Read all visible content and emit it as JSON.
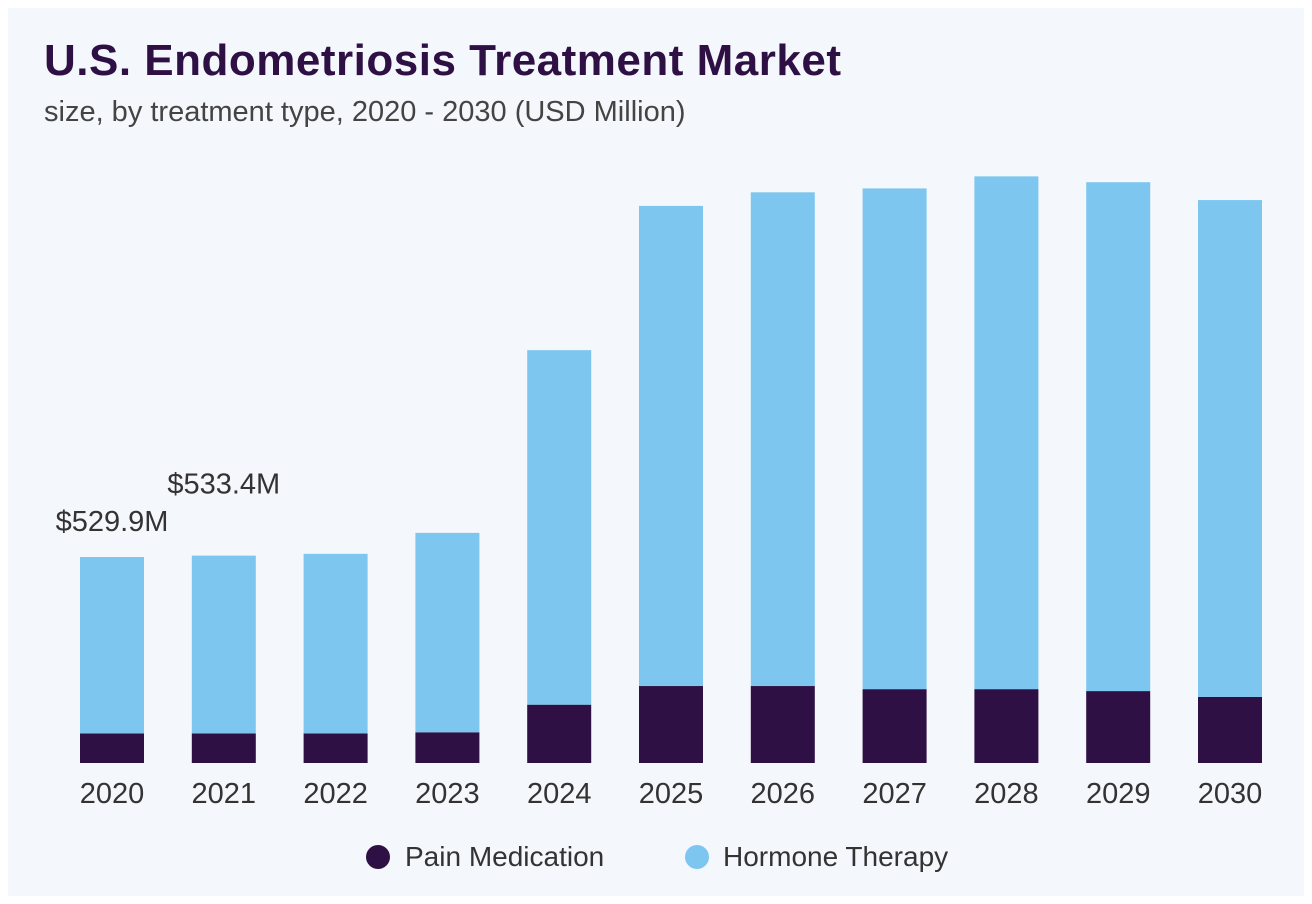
{
  "chart_data": {
    "type": "bar",
    "stacked": true,
    "title": "U.S. Endometriosis Treatment Market",
    "subtitle": "size, by treatment type, 2020 - 2030 (USD Million)",
    "xlabel": "",
    "ylabel": "",
    "categories": [
      "2020",
      "2021",
      "2022",
      "2023",
      "2024",
      "2025",
      "2026",
      "2027",
      "2028",
      "2029",
      "2030"
    ],
    "series": [
      {
        "name": "Pain Medication",
        "color": "#2e1045",
        "values": [
          76,
          76,
          76,
          79,
          150,
          198,
          198,
          190,
          190,
          185,
          170
        ]
      },
      {
        "name": "Hormone Therapy",
        "color": "#7cc6ef",
        "values": [
          453.9,
          457.4,
          462,
          513,
          912,
          1235,
          1270,
          1288,
          1319,
          1309,
          1278
        ]
      }
    ],
    "data_labels": [
      {
        "category": "2020",
        "text": "$529.9M"
      },
      {
        "category": "2021",
        "text": "$533.4M"
      }
    ],
    "ylim": [
      0,
      1600
    ],
    "grid": false,
    "legend_position": "bottom-center"
  }
}
